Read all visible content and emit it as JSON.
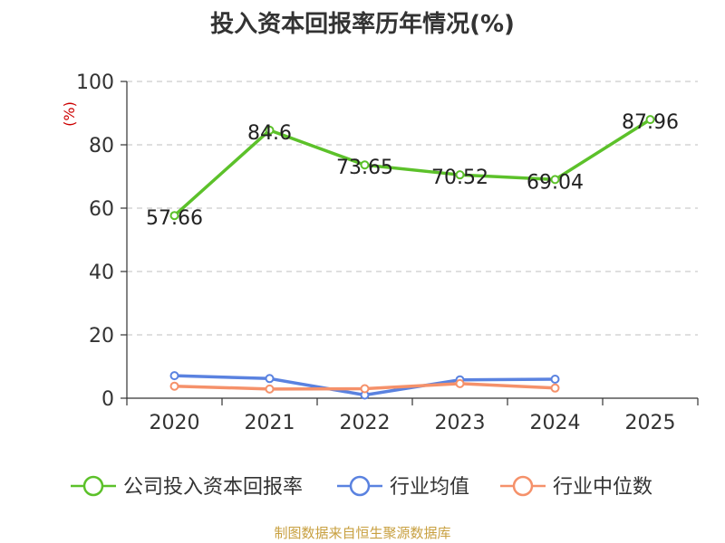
{
  "chart_data": {
    "type": "line",
    "title": "投入资本回报率历年情况(%)",
    "ylabel": "(%)",
    "xlabel": "",
    "ylim": [
      0,
      100
    ],
    "yticks": [
      0,
      20,
      40,
      60,
      80,
      100
    ],
    "categories": [
      "2020",
      "2021",
      "2022",
      "2023",
      "2024",
      "2025"
    ],
    "grid": true,
    "legend_position": "bottom",
    "series": [
      {
        "name": "公司投入资本回报率",
        "color": "#5cc12a",
        "values": [
          57.66,
          84.6,
          73.65,
          70.52,
          69.04,
          87.96
        ],
        "labels": [
          "57.66",
          "84.6",
          "73.65",
          "70.52",
          "69.04",
          "87.96"
        ]
      },
      {
        "name": "行业均值",
        "color": "#5a82e0",
        "values": [
          7.1,
          6.2,
          1.0,
          5.8,
          6.0,
          null
        ]
      },
      {
        "name": "行业中位数",
        "color": "#f5916a",
        "values": [
          3.8,
          2.9,
          3.0,
          4.6,
          3.2,
          null
        ]
      }
    ]
  },
  "source": "制图数据来自恒生聚源数据库"
}
